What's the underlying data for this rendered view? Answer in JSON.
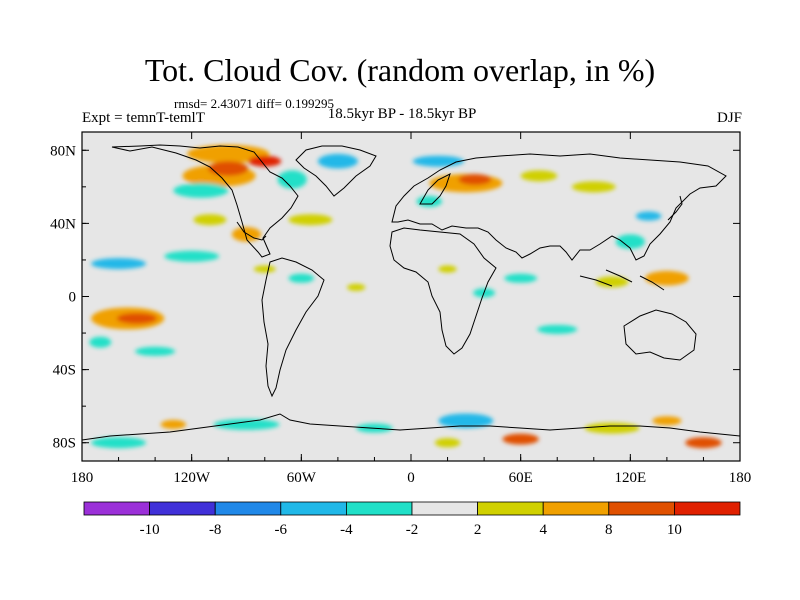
{
  "title": "Tot. Cloud Cov. (random overlap, in %)",
  "stats_line": "rmsd= 2.43071 diff= 0.199295",
  "experiment": "Expt = temnT-temlT",
  "period": "18.5kyr BP - 18.5kyr BP",
  "season": "DJF",
  "map": {
    "projection": "cylindrical equidistant",
    "lon_range": [
      -180,
      180
    ],
    "lat_range": [
      -90,
      90
    ],
    "ocean_land_background": "#e6e6e6",
    "x_ticks": [
      {
        "lon": -180,
        "label": "180"
      },
      {
        "lon": -120,
        "label": "120W"
      },
      {
        "lon": -60,
        "label": "60W"
      },
      {
        "lon": 0,
        "label": "0"
      },
      {
        "lon": 60,
        "label": "60E"
      },
      {
        "lon": 120,
        "label": "120E"
      },
      {
        "lon": 180,
        "label": "180"
      }
    ],
    "y_ticks": [
      {
        "lat": 80,
        "label": "80N"
      },
      {
        "lat": 40,
        "label": "40N"
      },
      {
        "lat": 0,
        "label": "0"
      },
      {
        "lat": -40,
        "label": "40S"
      },
      {
        "lat": -80,
        "label": "80S"
      }
    ],
    "anomaly_blobs": [
      {
        "lon": -155,
        "lat": -12,
        "w": 40,
        "h": 12,
        "color": "#f0a000"
      },
      {
        "lon": -150,
        "lat": -12,
        "w": 22,
        "h": 6,
        "color": "#e05000"
      },
      {
        "lon": -160,
        "lat": 18,
        "w": 30,
        "h": 6,
        "color": "#20b8e8"
      },
      {
        "lon": -120,
        "lat": 22,
        "w": 30,
        "h": 6,
        "color": "#20e0c8"
      },
      {
        "lon": -170,
        "lat": -25,
        "w": 12,
        "h": 6,
        "color": "#20e0c8"
      },
      {
        "lon": -140,
        "lat": -30,
        "w": 22,
        "h": 5,
        "color": "#20e0c8"
      },
      {
        "lon": -100,
        "lat": 78,
        "w": 45,
        "h": 10,
        "color": "#f0a000"
      },
      {
        "lon": -105,
        "lat": 66,
        "w": 40,
        "h": 12,
        "color": "#f0a000"
      },
      {
        "lon": -100,
        "lat": 70,
        "w": 22,
        "h": 8,
        "color": "#e05000"
      },
      {
        "lon": -80,
        "lat": 74,
        "w": 18,
        "h": 6,
        "color": "#e02000"
      },
      {
        "lon": -115,
        "lat": 58,
        "w": 30,
        "h": 8,
        "color": "#20e0c8"
      },
      {
        "lon": -65,
        "lat": 64,
        "w": 16,
        "h": 10,
        "color": "#20e0c8"
      },
      {
        "lon": -40,
        "lat": 74,
        "w": 22,
        "h": 8,
        "color": "#20b8e8"
      },
      {
        "lon": -90,
        "lat": 34,
        "w": 16,
        "h": 8,
        "color": "#f0a000"
      },
      {
        "lon": -110,
        "lat": 42,
        "w": 18,
        "h": 6,
        "color": "#d0d000"
      },
      {
        "lon": -55,
        "lat": 42,
        "w": 24,
        "h": 6,
        "color": "#d0d000"
      },
      {
        "lon": -60,
        "lat": 10,
        "w": 14,
        "h": 5,
        "color": "#20e0c8"
      },
      {
        "lon": -80,
        "lat": 15,
        "w": 12,
        "h": 4,
        "color": "#d0d000"
      },
      {
        "lon": 30,
        "lat": 62,
        "w": 40,
        "h": 10,
        "color": "#f0a000"
      },
      {
        "lon": 35,
        "lat": 64,
        "w": 18,
        "h": 6,
        "color": "#e05000"
      },
      {
        "lon": 15,
        "lat": 74,
        "w": 28,
        "h": 6,
        "color": "#20b8e8"
      },
      {
        "lon": 10,
        "lat": 52,
        "w": 14,
        "h": 6,
        "color": "#20e0c8"
      },
      {
        "lon": 70,
        "lat": 66,
        "w": 20,
        "h": 6,
        "color": "#d0d000"
      },
      {
        "lon": 100,
        "lat": 60,
        "w": 24,
        "h": 6,
        "color": "#d0d000"
      },
      {
        "lon": 120,
        "lat": 30,
        "w": 16,
        "h": 8,
        "color": "#20e0c8"
      },
      {
        "lon": 130,
        "lat": 44,
        "w": 14,
        "h": 5,
        "color": "#20b8e8"
      },
      {
        "lon": 110,
        "lat": 8,
        "w": 18,
        "h": 6,
        "color": "#d0d000"
      },
      {
        "lon": 140,
        "lat": 10,
        "w": 24,
        "h": 8,
        "color": "#f0a000"
      },
      {
        "lon": 60,
        "lat": 10,
        "w": 18,
        "h": 5,
        "color": "#20e0c8"
      },
      {
        "lon": 40,
        "lat": 2,
        "w": 12,
        "h": 5,
        "color": "#20e0c8"
      },
      {
        "lon": 80,
        "lat": -18,
        "w": 22,
        "h": 5,
        "color": "#20e0c8"
      },
      {
        "lon": 20,
        "lat": 15,
        "w": 10,
        "h": 4,
        "color": "#d0d000"
      },
      {
        "lon": -30,
        "lat": 5,
        "w": 10,
        "h": 4,
        "color": "#d0d000"
      },
      {
        "lon": 30,
        "lat": -68,
        "w": 30,
        "h": 8,
        "color": "#20b8e8"
      },
      {
        "lon": 60,
        "lat": -78,
        "w": 20,
        "h": 6,
        "color": "#e05000"
      },
      {
        "lon": 20,
        "lat": -80,
        "w": 14,
        "h": 5,
        "color": "#d0d000"
      },
      {
        "lon": -90,
        "lat": -70,
        "w": 36,
        "h": 6,
        "color": "#20e0c8"
      },
      {
        "lon": -130,
        "lat": -70,
        "w": 14,
        "h": 5,
        "color": "#f0a000"
      },
      {
        "lon": -20,
        "lat": -72,
        "w": 20,
        "h": 5,
        "color": "#20e0c8"
      },
      {
        "lon": 110,
        "lat": -72,
        "w": 30,
        "h": 6,
        "color": "#d0d000"
      },
      {
        "lon": 160,
        "lat": -80,
        "w": 20,
        "h": 6,
        "color": "#e05000"
      },
      {
        "lon": -160,
        "lat": -80,
        "w": 30,
        "h": 6,
        "color": "#20e0c8"
      },
      {
        "lon": 140,
        "lat": -68,
        "w": 16,
        "h": 5,
        "color": "#f0a000"
      }
    ]
  },
  "colorbar": {
    "colors": [
      "#9b30d8",
      "#4030d8",
      "#2088e8",
      "#20b8e8",
      "#20e0c8",
      "#e6e6e6",
      "#d0d000",
      "#f0a000",
      "#e05000",
      "#e02000"
    ],
    "labels": [
      "-10",
      "-8",
      "-6",
      "-4",
      "-2",
      "2",
      "4",
      "8",
      "10"
    ]
  }
}
